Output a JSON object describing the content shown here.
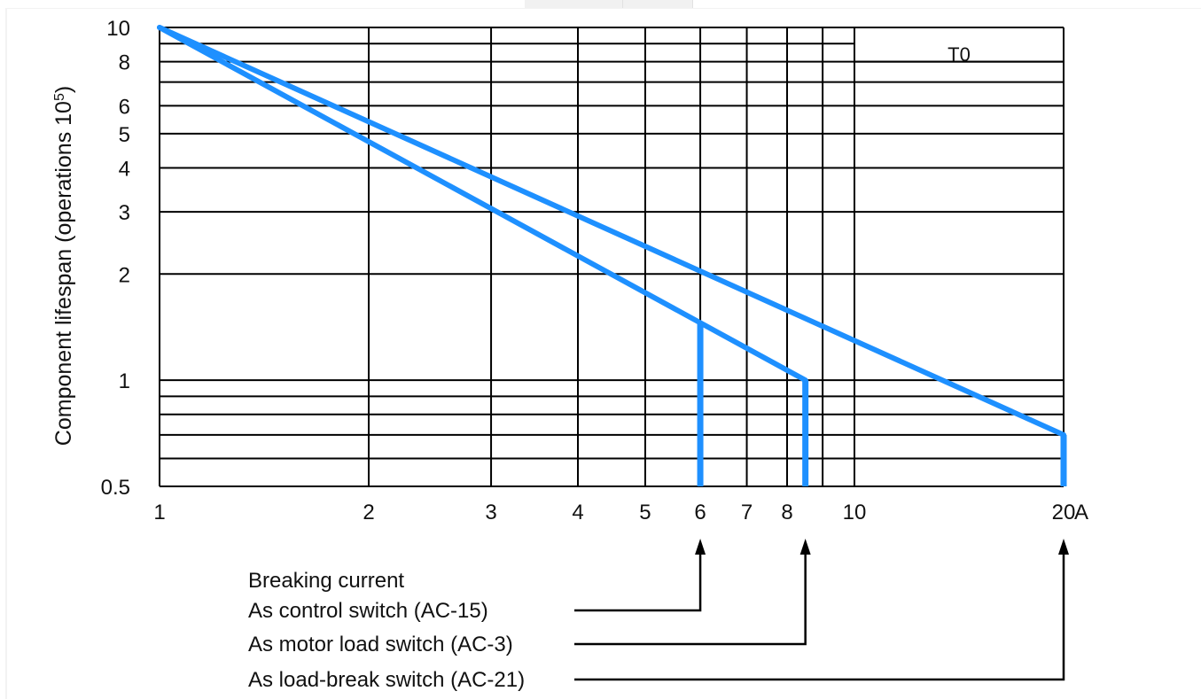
{
  "chart_data": {
    "type": "line",
    "title": "",
    "xlabel": "A",
    "ylabel": "Component lifespan (operations 10⁵)",
    "ylabel_base": "Component lifespan (operations 10",
    "ylabel_exp": "5",
    "ylabel_close": ")",
    "x_scale": "log",
    "y_scale": "log",
    "xlim": [
      1,
      20
    ],
    "ylim": [
      0.5,
      10
    ],
    "x_ticks": [
      {
        "value": 1,
        "label": "1"
      },
      {
        "value": 2,
        "label": "2"
      },
      {
        "value": 3,
        "label": "3"
      },
      {
        "value": 4,
        "label": "4"
      },
      {
        "value": 5,
        "label": "5"
      },
      {
        "value": 6,
        "label": "6"
      },
      {
        "value": 7,
        "label": "7"
      },
      {
        "value": 8,
        "label": "8"
      },
      {
        "value": 10,
        "label": "10"
      },
      {
        "value": 20,
        "label": "20"
      }
    ],
    "x_unit_label": "A",
    "x_gridlines": [
      2,
      3,
      4,
      5,
      6,
      7,
      8,
      9,
      10,
      20
    ],
    "y_ticks": [
      {
        "value": 0.5,
        "label": "0.5"
      },
      {
        "value": 1,
        "label": "1"
      },
      {
        "value": 2,
        "label": "2"
      },
      {
        "value": 3,
        "label": "3"
      },
      {
        "value": 4,
        "label": "4"
      },
      {
        "value": 5,
        "label": "5"
      },
      {
        "value": 6,
        "label": "6"
      },
      {
        "value": 8,
        "label": "8"
      },
      {
        "value": 10,
        "label": "10"
      }
    ],
    "y_gridlines": [
      0.6,
      0.7,
      0.8,
      0.9,
      1,
      2,
      3,
      4,
      5,
      6,
      7,
      8,
      9
    ],
    "grid": true,
    "region_label": "T0",
    "line_color": "#1e90ff",
    "series": [
      {
        "x": [
          1,
          20
        ],
        "y": [
          10,
          0.7
        ]
      },
      {
        "x": [
          1,
          8.5
        ],
        "y": [
          10,
          1.0
        ]
      }
    ],
    "cutoff_drops": [
      {
        "x": 6,
        "y_top": 1.45,
        "y_bottom": 0.5
      },
      {
        "x": 8.5,
        "y_top": 1.0,
        "y_bottom": 0.5
      },
      {
        "x": 20,
        "y_top": 0.7,
        "y_bottom": 0.5
      }
    ],
    "annotations": {
      "heading": "Breaking current",
      "items": [
        {
          "label": "As control switch (AC-15)",
          "x": 6
        },
        {
          "label": "As motor load switch (AC-3)",
          "x": 8.5
        },
        {
          "label": "As load-break switch (AC-21)",
          "x": 20
        }
      ]
    }
  }
}
